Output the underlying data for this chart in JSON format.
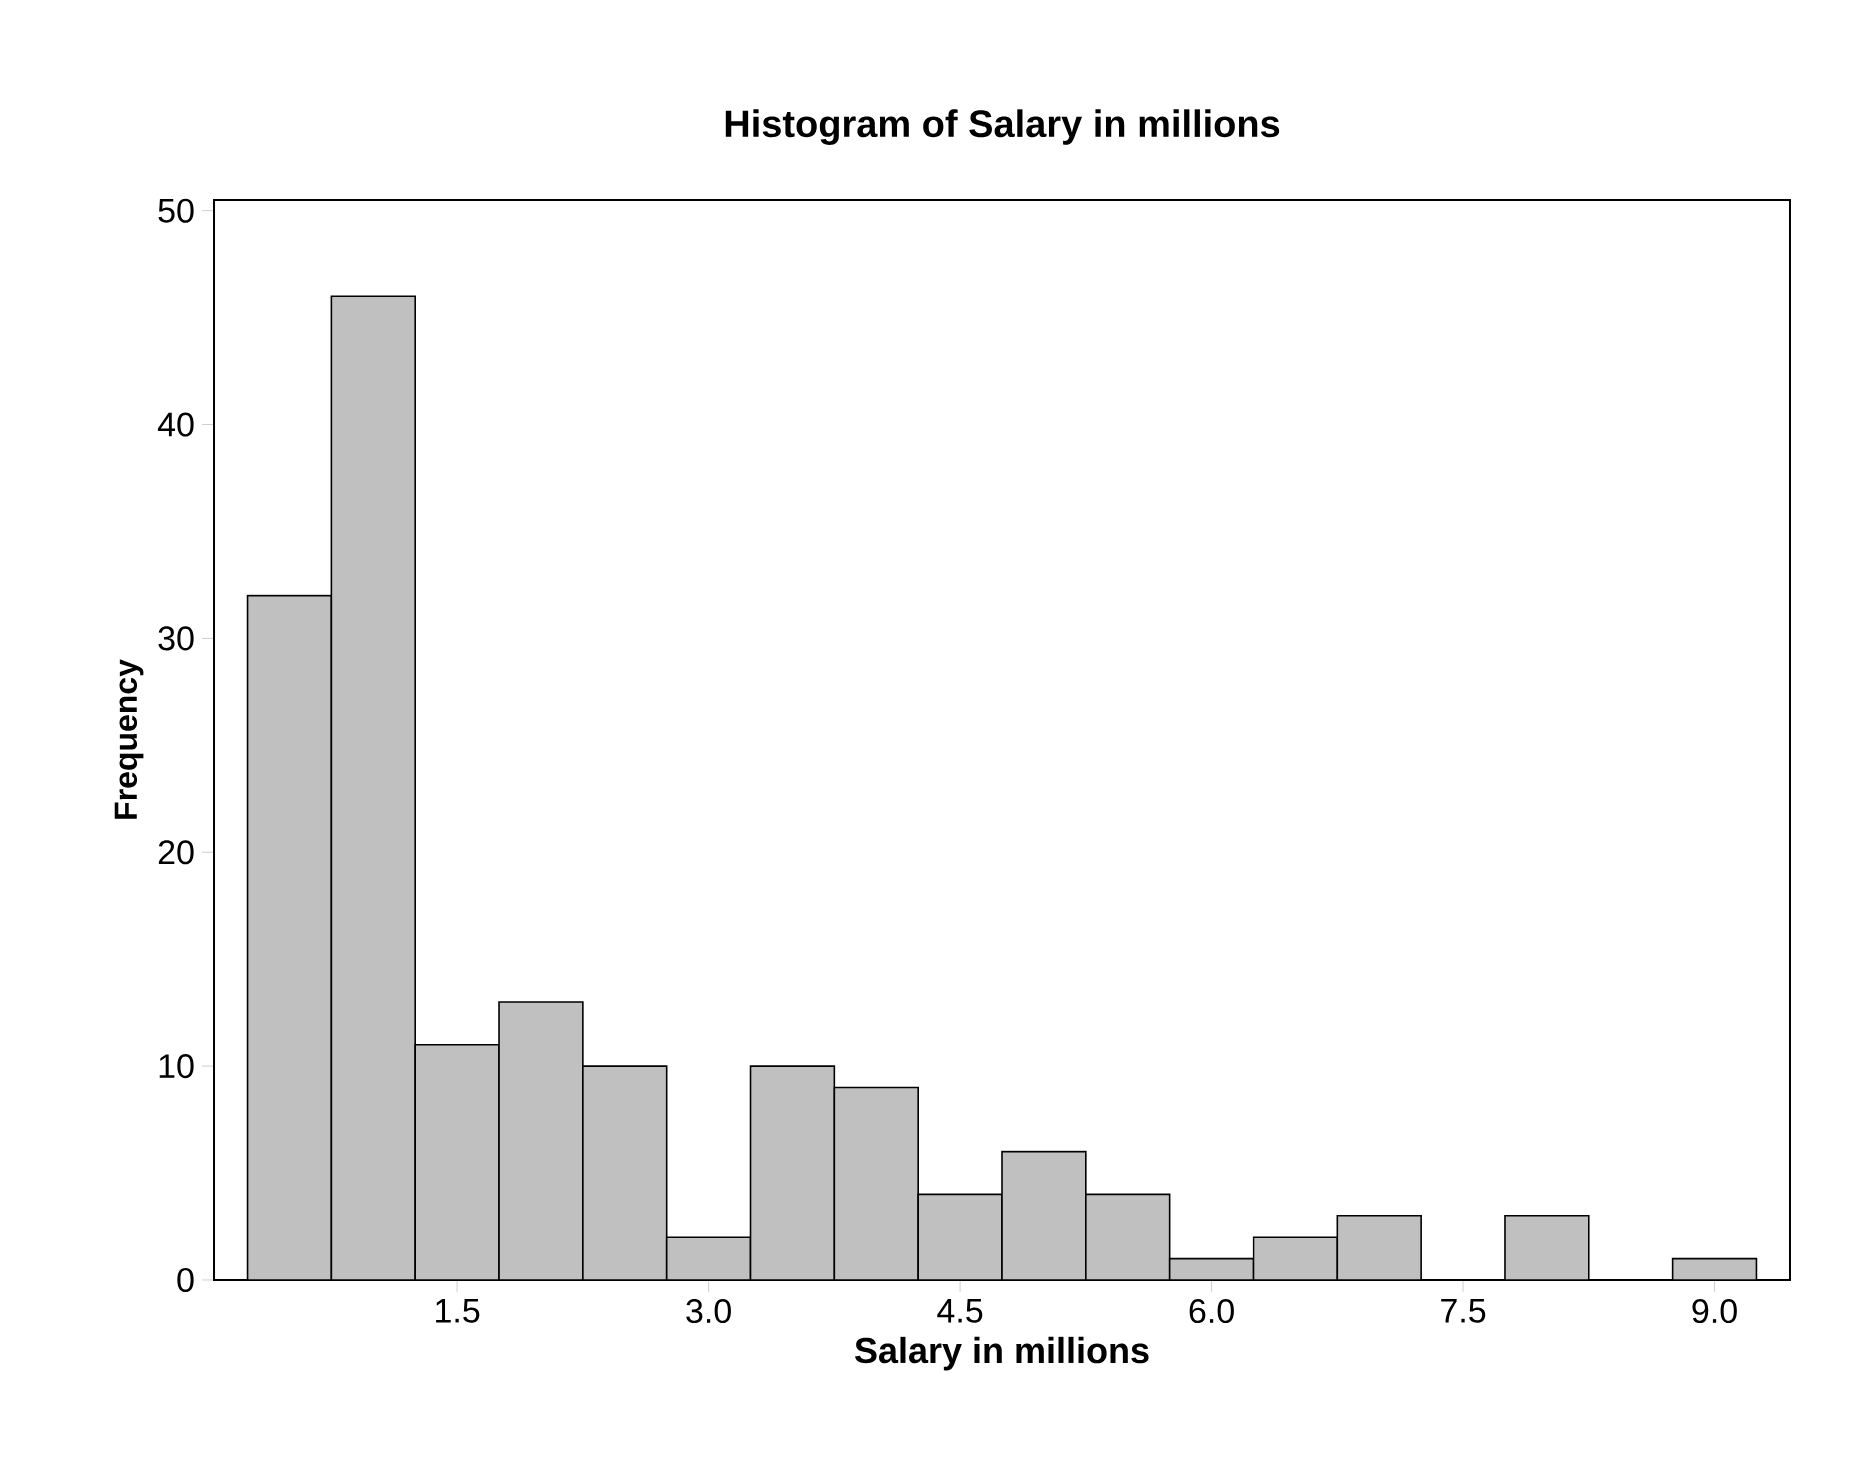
{
  "chart_data": {
    "type": "histogram",
    "title": "Histogram of Salary in millions",
    "xlabel": "Salary in millions",
    "ylabel": "Frequency",
    "bins": [
      0.25,
      0.75,
      1.25,
      1.75,
      2.25,
      2.75,
      3.25,
      3.75,
      4.25,
      4.75,
      5.25,
      5.75,
      6.25,
      6.75,
      7.25,
      7.75,
      8.25,
      8.75,
      9.25
    ],
    "values": [
      32,
      46,
      11,
      13,
      10,
      2,
      10,
      9,
      4,
      6,
      4,
      1,
      2,
      3,
      0,
      3,
      0,
      1
    ],
    "color": "#c0c0c0",
    "xlim": [
      0.05,
      9.45
    ],
    "ylim": [
      0,
      50.5
    ],
    "xticks": [
      1.5,
      {
        "value": 3,
        "label": "3.0"
      },
      4.5,
      {
        "value": 6,
        "label": "6.0"
      },
      7.5,
      {
        "value": 9,
        "label": "9.0"
      }
    ],
    "yticks": [
      0,
      10,
      20,
      30,
      40,
      50
    ]
  }
}
